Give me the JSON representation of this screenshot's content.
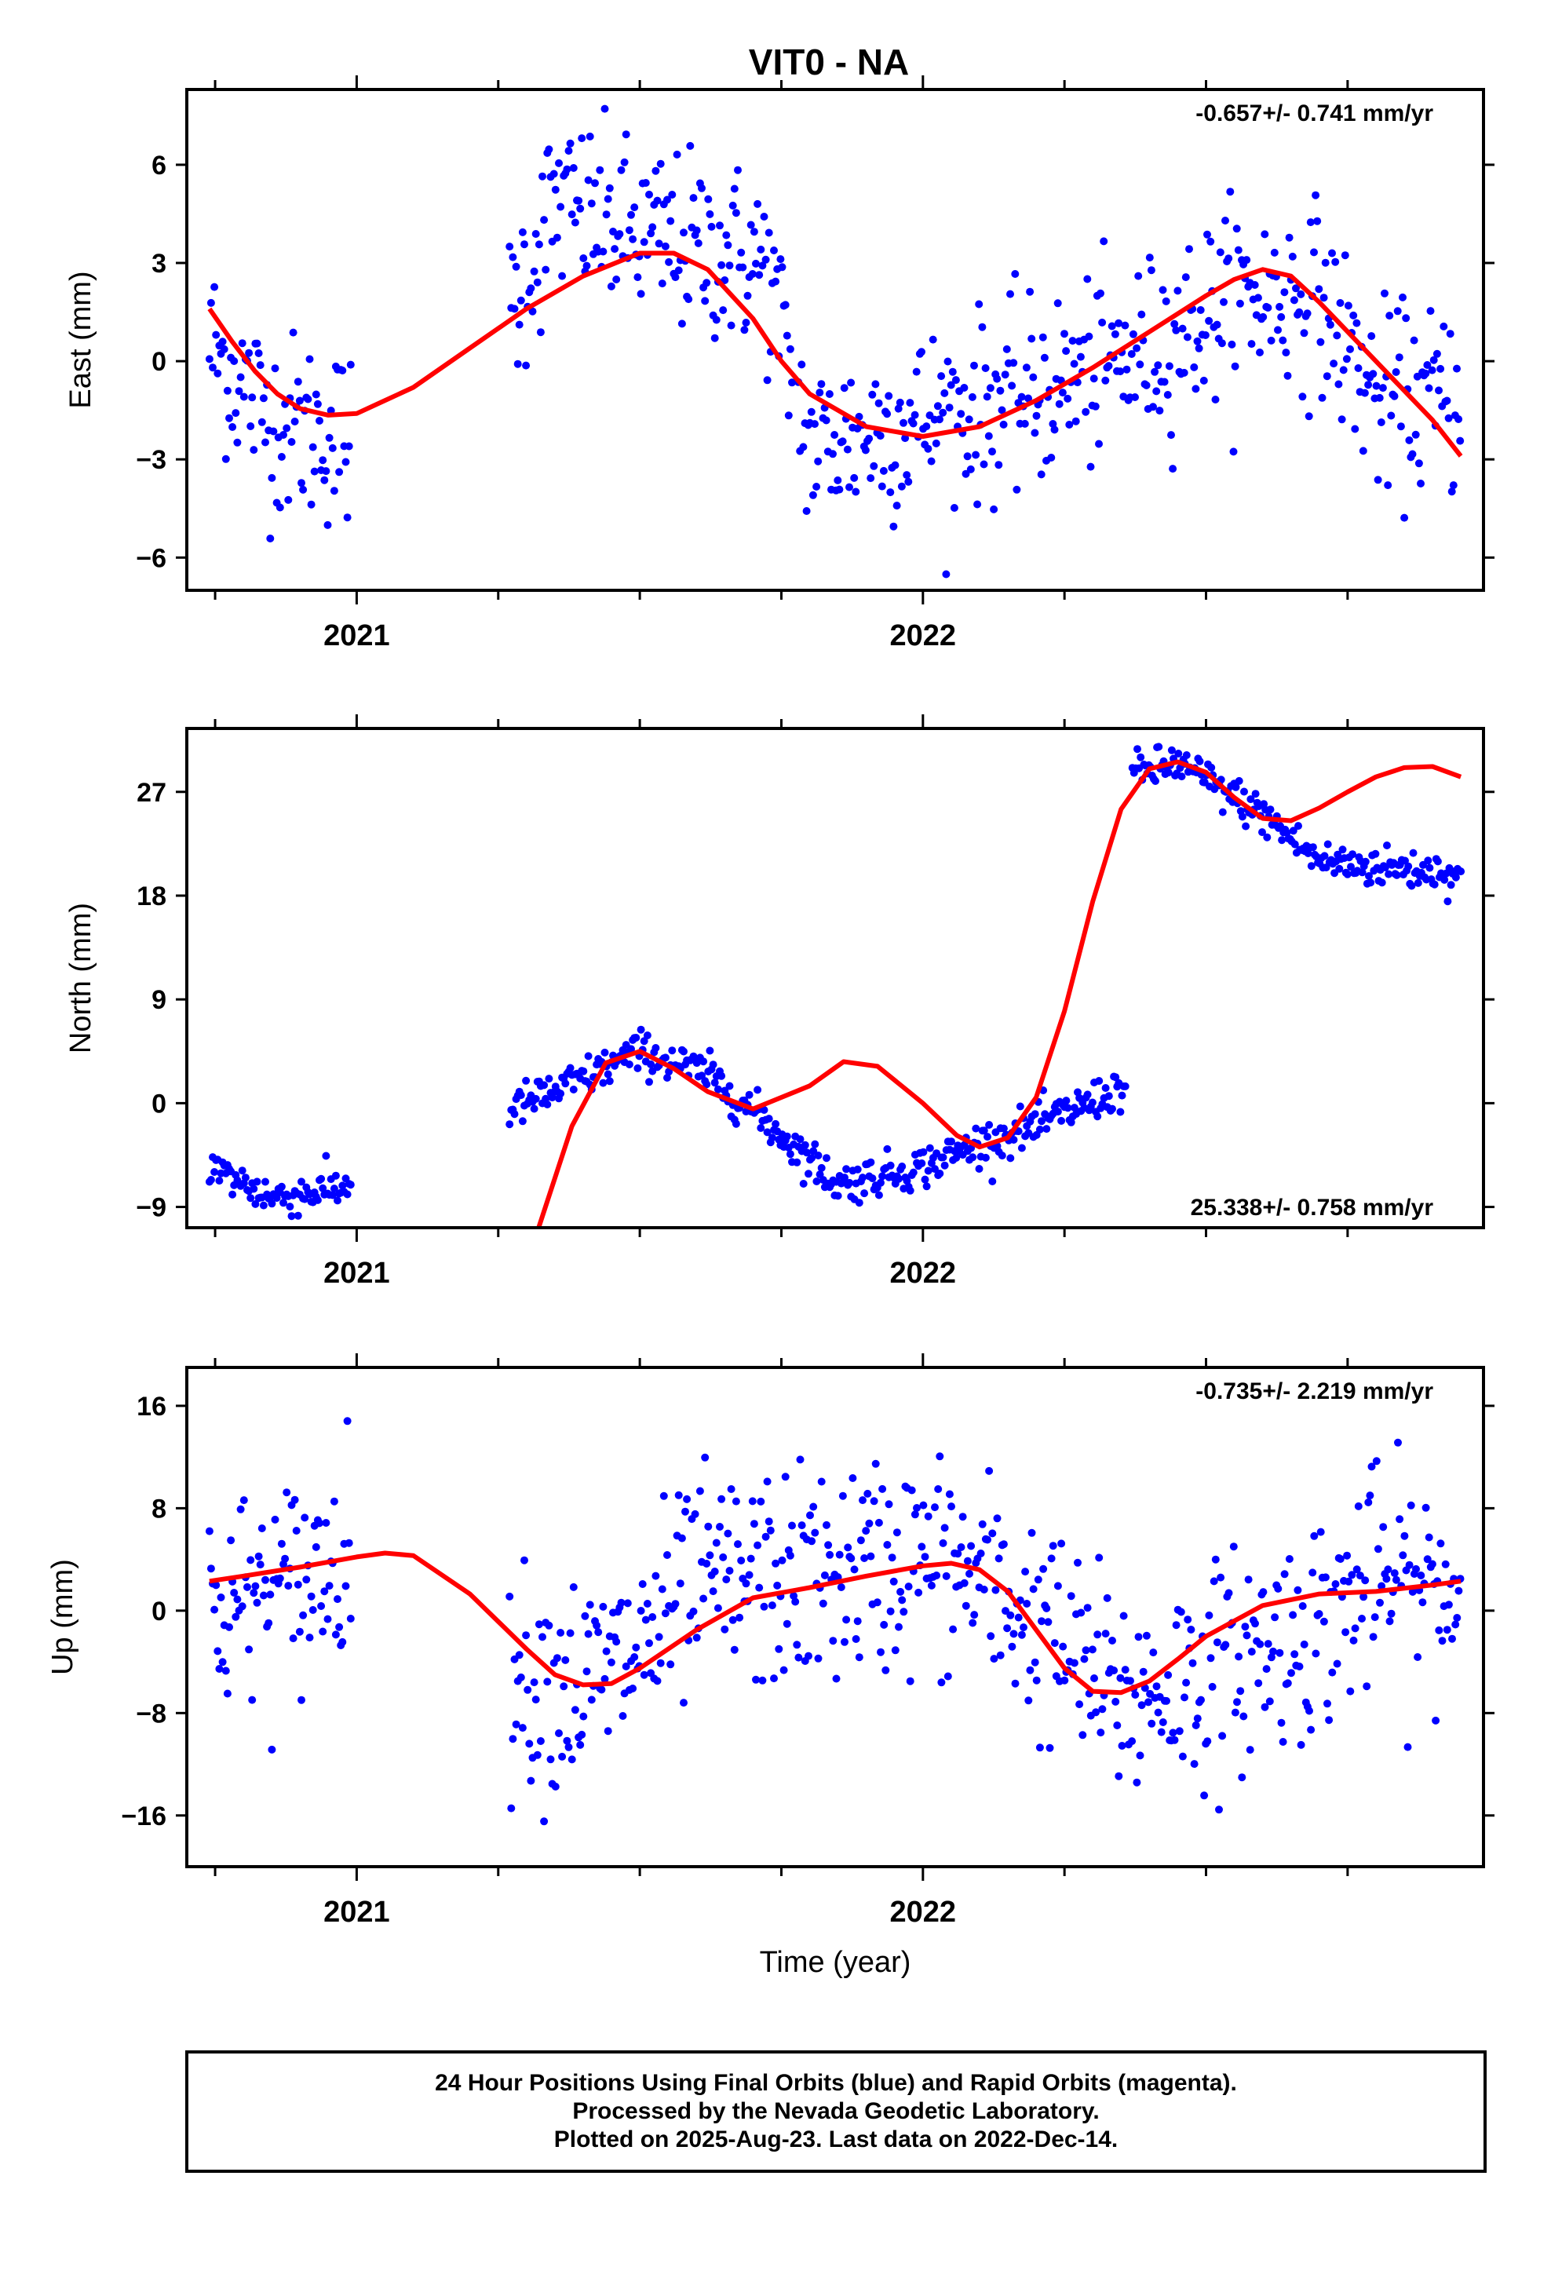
{
  "title": "VIT0 - NA",
  "footer": {
    "line1": "24 Hour Positions Using Final Orbits (blue) and Rapid Orbits (magenta).",
    "line2": "Processed by the Nevada Geodetic Laboratory.",
    "line3": "Plotted on 2025-Aug-23. Last data on 2022-Dec-14."
  },
  "colors": {
    "points": "#0000ff",
    "fit": "#ff0000",
    "frame": "#000000"
  },
  "chart_data": [
    {
      "type": "scatter",
      "title": "VIT0 - NA",
      "ylabel": "East (mm)",
      "xlabel": "",
      "annotation": "-0.657+/- 0.741 mm/yr",
      "annotation_position": "top-right",
      "xlim": [
        2020.7,
        2022.99
      ],
      "ylim": [
        -7,
        8.3
      ],
      "xticks": [
        2021,
        2022
      ],
      "yticks": [
        6,
        3,
        0,
        -3,
        -6
      ],
      "series": [
        {
          "kind": "points",
          "color": "#0000ff",
          "segments": [
            [
              2020.74,
              2020.99
            ],
            [
              2021.27,
              2021.77
            ],
            [
              2021.78,
              2022.95
            ]
          ]
        },
        {
          "kind": "fit",
          "color": "#ff0000",
          "x": [
            2020.74,
            2020.78,
            2020.82,
            2020.86,
            2020.9,
            2020.95,
            2021.0,
            2021.1,
            2021.2,
            2021.3,
            2021.4,
            2021.5,
            2021.56,
            2021.62,
            2021.7,
            2021.75,
            2021.8,
            2021.9,
            2022.0,
            2022.1,
            2022.2,
            2022.3,
            2022.4,
            2022.5,
            2022.55,
            2022.6,
            2022.65,
            2022.7,
            2022.8,
            2022.9,
            2022.95
          ],
          "y": [
            1.6,
            0.6,
            -0.3,
            -1.0,
            -1.45,
            -1.65,
            -1.6,
            -0.8,
            0.4,
            1.6,
            2.6,
            3.3,
            3.3,
            2.8,
            1.3,
            0.0,
            -1.0,
            -2.0,
            -2.3,
            -2.0,
            -1.2,
            -0.2,
            0.9,
            2.0,
            2.5,
            2.8,
            2.6,
            1.8,
            0.0,
            -1.8,
            -2.9
          ]
        }
      ]
    },
    {
      "type": "scatter",
      "ylabel": "North (mm)",
      "xlabel": "",
      "annotation": "25.338+/- 0.758 mm/yr",
      "annotation_position": "bottom-right",
      "xlim": [
        2020.7,
        2022.99
      ],
      "ylim": [
        -10.8,
        32.5
      ],
      "xticks": [
        2021,
        2022
      ],
      "yticks": [
        27,
        18,
        9,
        0,
        -9
      ],
      "series": [
        {
          "kind": "points",
          "color": "#0000ff",
          "segments": [
            [
              2020.74,
              2020.99
            ],
            [
              2021.27,
              2022.36
            ],
            [
              2022.37,
              2022.95
            ]
          ]
        },
        {
          "kind": "fit",
          "color": "#ff0000",
          "x": [
            2021.32,
            2021.38,
            2021.44,
            2021.5,
            2021.56,
            2021.62,
            2021.7,
            2021.8,
            2021.86,
            2021.92,
            2022.0,
            2022.06,
            2022.1,
            2022.15,
            2022.2,
            2022.25,
            2022.3,
            2022.35,
            2022.4,
            2022.45,
            2022.5,
            2022.55,
            2022.6,
            2022.65,
            2022.7,
            2022.75,
            2022.8,
            2022.85,
            2022.9,
            2022.95
          ],
          "y": [
            -11.0,
            -2.0,
            3.5,
            4.5,
            3.0,
            1.0,
            -0.5,
            1.5,
            3.6,
            3.2,
            0.0,
            -2.8,
            -3.8,
            -3.0,
            0.5,
            8.0,
            17.5,
            25.5,
            29.0,
            29.6,
            28.7,
            26.5,
            24.7,
            24.5,
            25.6,
            27.0,
            28.3,
            29.1,
            29.2,
            28.3
          ]
        }
      ]
    },
    {
      "type": "scatter",
      "ylabel": "Up (mm)",
      "xlabel": "Time (year)",
      "annotation": "-0.735+/- 2.219 mm/yr",
      "annotation_position": "top-right",
      "xlim": [
        2020.7,
        2022.99
      ],
      "ylim": [
        -20,
        19
      ],
      "xticks": [
        2021,
        2022
      ],
      "yticks": [
        16,
        8,
        0,
        -8,
        -16
      ],
      "series": [
        {
          "kind": "points",
          "color": "#0000ff",
          "segments": [
            [
              2020.74,
              2020.99
            ],
            [
              2021.27,
              2022.95
            ]
          ]
        },
        {
          "kind": "fit",
          "color": "#ff0000",
          "x": [
            2020.74,
            2020.8,
            2020.9,
            2021.0,
            2021.05,
            2021.1,
            2021.2,
            2021.3,
            2021.35,
            2021.4,
            2021.45,
            2021.5,
            2021.6,
            2021.7,
            2021.8,
            2021.9,
            2022.0,
            2022.05,
            2022.1,
            2022.15,
            2022.2,
            2022.25,
            2022.3,
            2022.35,
            2022.4,
            2022.45,
            2022.5,
            2022.6,
            2022.7,
            2022.8,
            2022.9,
            2022.95
          ],
          "y": [
            2.3,
            2.7,
            3.4,
            4.2,
            4.5,
            4.3,
            1.3,
            -3.0,
            -5.0,
            -5.8,
            -5.7,
            -4.5,
            -1.5,
            1.0,
            1.8,
            2.7,
            3.5,
            3.7,
            3.2,
            1.5,
            -1.5,
            -4.5,
            -6.3,
            -6.4,
            -5.5,
            -3.8,
            -2.0,
            0.4,
            1.3,
            1.5,
            2.0,
            2.3
          ]
        }
      ]
    }
  ]
}
